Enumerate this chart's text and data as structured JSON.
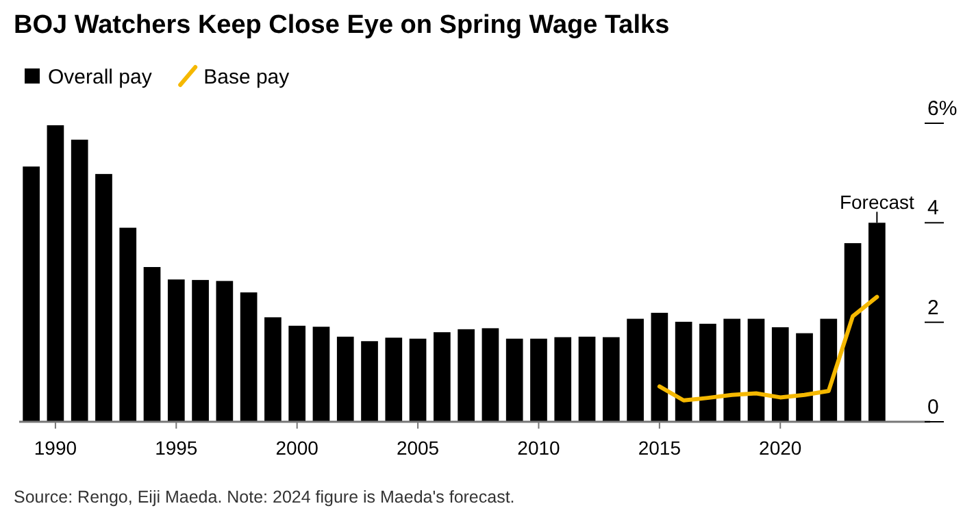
{
  "chart_data": {
    "type": "bar",
    "title": "BOJ Watchers Keep Close Eye on Spring Wage Talks",
    "categories": [
      null,
      "1990",
      null,
      null,
      null,
      null,
      "1995",
      null,
      null,
      null,
      null,
      "2000",
      null,
      null,
      null,
      null,
      "2005",
      null,
      null,
      null,
      null,
      "2010",
      null,
      null,
      null,
      null,
      "2015",
      null,
      null,
      null,
      null,
      "2020",
      null,
      null,
      null,
      null
    ],
    "series": [
      {
        "name": "Overall pay",
        "color": "#000000",
        "values": [
          5.13,
          5.96,
          5.67,
          4.98,
          3.9,
          3.11,
          2.86,
          2.85,
          2.83,
          2.6,
          2.1,
          1.93,
          1.91,
          1.71,
          1.62,
          1.69,
          1.67,
          1.8,
          1.86,
          1.88,
          1.67,
          1.67,
          1.7,
          1.71,
          1.7,
          2.07,
          2.19,
          2.01,
          1.97,
          2.07,
          2.07,
          1.9,
          1.78,
          2.07,
          3.59,
          4.0
        ]
      },
      {
        "name": "Base pay",
        "type": "line",
        "color": "#f5b800",
        "values": [
          null,
          null,
          null,
          null,
          null,
          null,
          null,
          null,
          null,
          null,
          null,
          null,
          null,
          null,
          null,
          null,
          null,
          null,
          null,
          null,
          null,
          null,
          null,
          null,
          null,
          null,
          0.71,
          0.43,
          0.48,
          0.54,
          0.57,
          0.49,
          0.54,
          0.62,
          2.12,
          2.51
        ]
      }
    ],
    "ylim": [
      0,
      6
    ],
    "yticks": [
      0,
      2,
      4,
      {
        "value": 6,
        "label": "6%"
      }
    ],
    "legend": "top left",
    "grid": false,
    "annotations": [
      "Forecast",
      "Source: Rengo, Eiji Maeda. Note: 2024 figure is Maeda's forecast."
    ]
  }
}
